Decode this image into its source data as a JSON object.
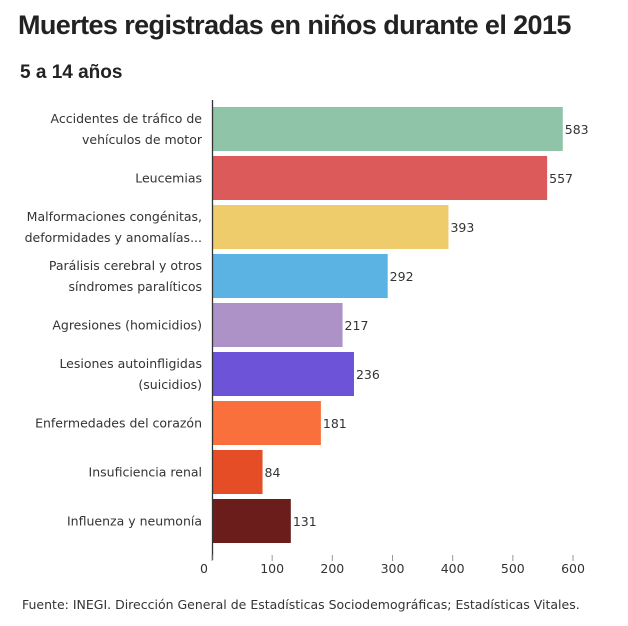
{
  "chart_data": {
    "type": "bar",
    "orientation": "horizontal",
    "title": "Muertes registradas en niños durante el 2015",
    "subtitle": "5 a 14 años",
    "categories": [
      [
        "Accidentes de tráfico de",
        "vehículos de motor"
      ],
      [
        "Leucemias"
      ],
      [
        "Malformaciones congénitas,",
        "deformidades y anomalías..."
      ],
      [
        "Parálisis cerebral y otros",
        "síndromes paralíticos"
      ],
      [
        "Agresiones (homicidios)"
      ],
      [
        "Lesiones autoinfligidas",
        "(suicidios)"
      ],
      [
        "Enfermedades del corazón"
      ],
      [
        "Insuficiencia renal"
      ],
      [
        "Influenza y neumonía"
      ]
    ],
    "values": [
      583,
      557,
      393,
      292,
      217,
      236,
      181,
      84,
      131
    ],
    "colors": [
      "#8fc4a8",
      "#dd5a5b",
      "#eecb6b",
      "#5ab3e2",
      "#ad92c8",
      "#6c53d8",
      "#f9703d",
      "#e44d26",
      "#6a1d1a"
    ],
    "xlim": [
      0,
      600
    ],
    "xticks": [
      0,
      100,
      200,
      300,
      400,
      500,
      600
    ],
    "grid": false,
    "legend": "none"
  },
  "source": "Fuente:  INEGI. Dirección General de Estadísticas Sociodemográficas; Estadísticas Vitales."
}
